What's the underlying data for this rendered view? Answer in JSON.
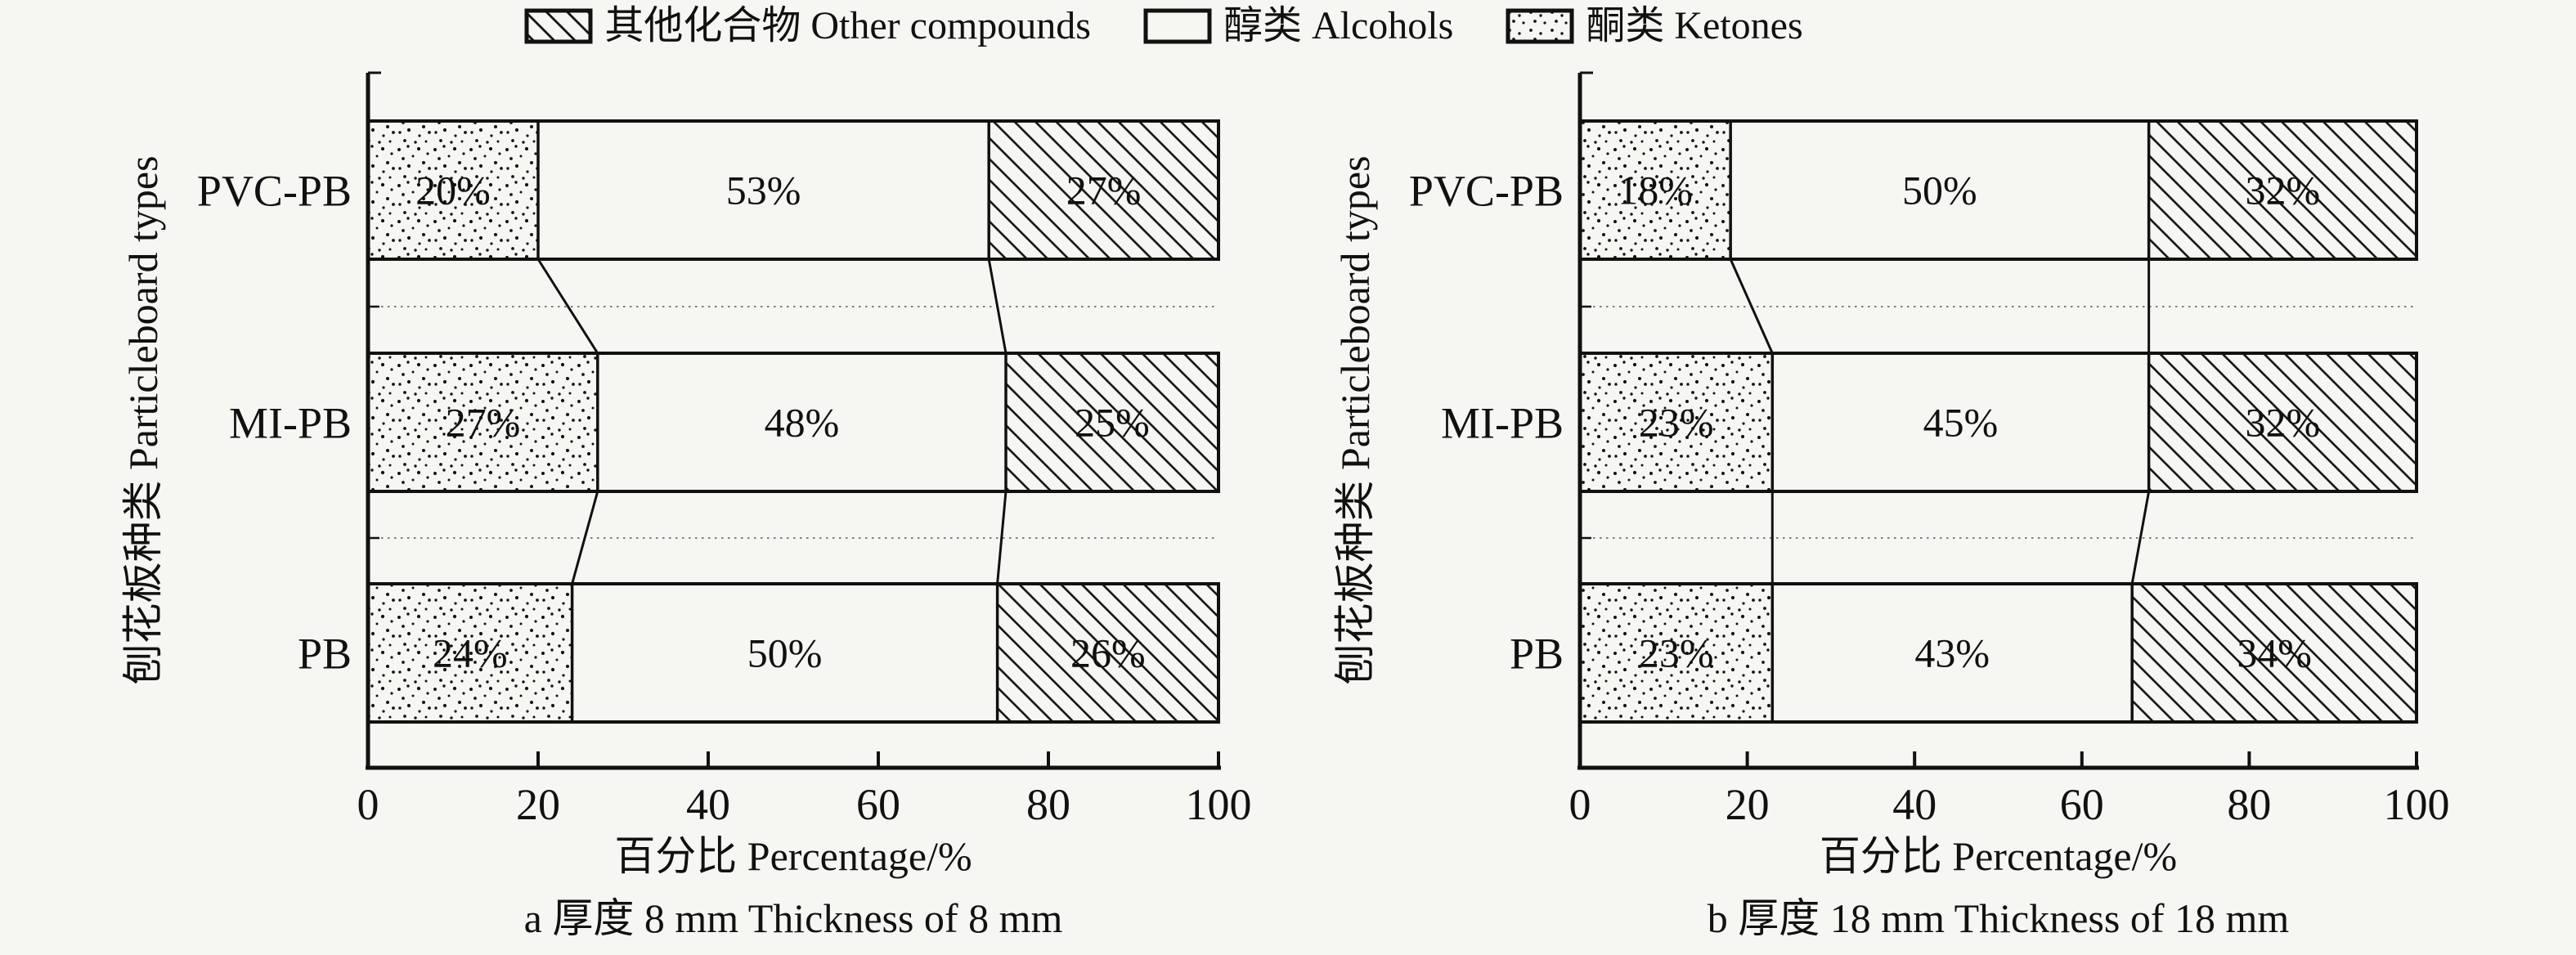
{
  "colors": {
    "ink": "#111111",
    "background": "#f6f6f3",
    "guide": "#555555"
  },
  "legend": {
    "items": [
      {
        "key": "other",
        "swatch": "diagonal-hatch",
        "label": "其他化合物 Other compounds"
      },
      {
        "key": "alcohols",
        "swatch": "empty",
        "label": "醇类 Alcohols"
      },
      {
        "key": "ketones",
        "swatch": "dots",
        "label": "酮类 Ketones"
      }
    ]
  },
  "chart_data": [
    {
      "type": "bar",
      "orientation": "horizontal",
      "stacked": true,
      "caption": "a 厚度 8 mm Thickness of 8 mm",
      "xlabel": "百分比 Percentage/%",
      "ylabel": "刨花板种类 Particleboard types",
      "xlim": [
        0,
        100
      ],
      "xticks": [
        0,
        20,
        40,
        60,
        80,
        100
      ],
      "grid": "off",
      "categories": [
        "PVC-PB",
        "MI-PB",
        "PB"
      ],
      "series": [
        {
          "name": "酮类 Ketones",
          "key": "ketones",
          "pattern": "dots",
          "values": [
            20,
            27,
            24
          ]
        },
        {
          "name": "醇类 Alcohols",
          "key": "alcohols",
          "pattern": "empty",
          "values": [
            53,
            48,
            50
          ]
        },
        {
          "name": "其他化合物 Other compounds",
          "key": "other",
          "pattern": "diagonal-hatch",
          "values": [
            27,
            25,
            26
          ]
        }
      ],
      "segment_labels": [
        [
          "20%",
          "53%",
          "27%"
        ],
        [
          "27%",
          "48%",
          "25%"
        ],
        [
          "24%",
          "50%",
          "26%"
        ]
      ]
    },
    {
      "type": "bar",
      "orientation": "horizontal",
      "stacked": true,
      "caption": "b 厚度 18 mm Thickness of 18 mm",
      "xlabel": "百分比 Percentage/%",
      "ylabel": "刨花板种类 Particleboard types",
      "xlim": [
        0,
        100
      ],
      "xticks": [
        0,
        20,
        40,
        60,
        80,
        100
      ],
      "grid": "off",
      "categories": [
        "PVC-PB",
        "MI-PB",
        "PB"
      ],
      "series": [
        {
          "name": "酮类 Ketones",
          "key": "ketones",
          "pattern": "dots",
          "values": [
            18,
            23,
            23
          ]
        },
        {
          "name": "醇类 Alcohols",
          "key": "alcohols",
          "pattern": "empty",
          "values": [
            50,
            45,
            43
          ]
        },
        {
          "name": "其他化合物 Other compounds",
          "key": "other",
          "pattern": "diagonal-hatch",
          "values": [
            32,
            32,
            34
          ]
        }
      ],
      "segment_labels": [
        [
          "18%",
          "50%",
          "32%"
        ],
        [
          "23%",
          "45%",
          "32%"
        ],
        [
          "23%",
          "43%",
          "34%"
        ]
      ]
    }
  ]
}
